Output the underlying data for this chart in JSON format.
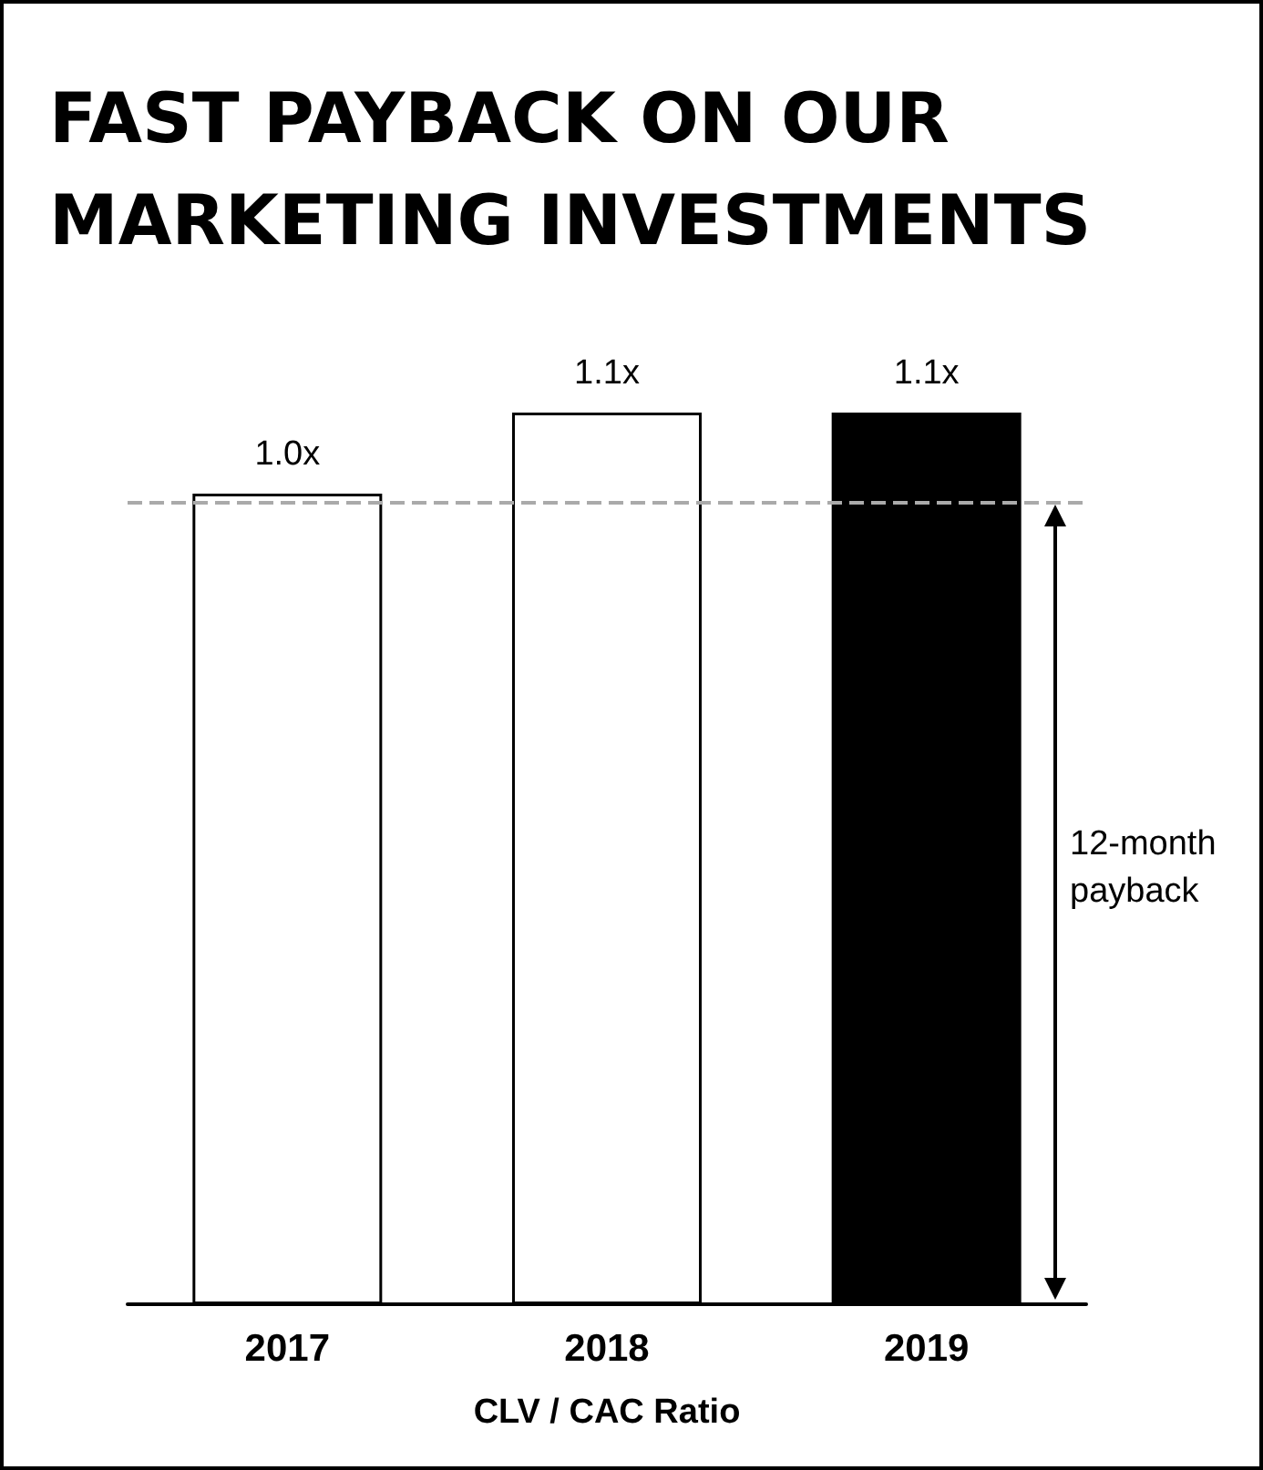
{
  "chart_data": {
    "type": "bar",
    "title": "FAST PAYBACK ON OUR MARKETING INVESTMENTS",
    "xlabel": "CLV / CAC Ratio",
    "categories": [
      "2017",
      "2018",
      "2019"
    ],
    "values": [
      1.0,
      1.1,
      1.1
    ],
    "colors": [
      "#ffffff",
      "#ffffff",
      "#000000"
    ],
    "value_labels": [
      "1.0x",
      "1.1x",
      "1.1x"
    ],
    "ref_lines": [
      {
        "axis": "y",
        "value": 0.99,
        "label": null,
        "color": "#aaaaaa",
        "line_style": "dashed"
      }
    ],
    "annotations": [
      "12-month payback"
    ],
    "grid": false
  }
}
